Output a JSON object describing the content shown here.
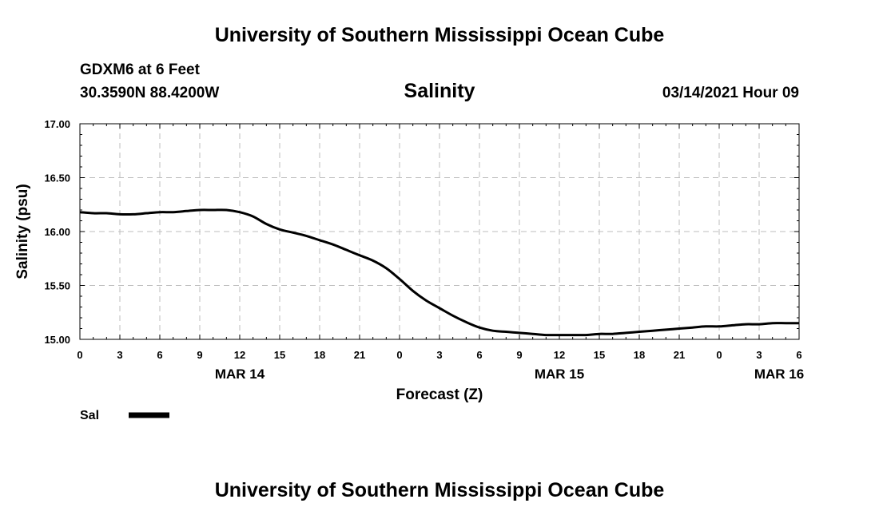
{
  "header": {
    "top_title": "University of Southern Mississippi Ocean Cube",
    "station": "GDXM6 at 6 Feet",
    "coords": "30.3590N 88.4200W",
    "chart_title": "Salinity",
    "datetime": "03/14/2021 Hour 09",
    "bottom_title": "University of Southern Mississippi Ocean Cube"
  },
  "chart_data": {
    "type": "line",
    "title": "Salinity",
    "xlabel": "Forecast (Z)",
    "ylabel": "Salinity (psu)",
    "ylim": [
      15.0,
      17.0
    ],
    "xlim_hours": [
      0,
      54
    ],
    "y_ticks": [
      "15.00",
      "15.50",
      "16.00",
      "16.50",
      "17.00"
    ],
    "x_ticks": [
      {
        "hour": 0,
        "label": "0"
      },
      {
        "hour": 3,
        "label": "3"
      },
      {
        "hour": 6,
        "label": "6"
      },
      {
        "hour": 9,
        "label": "9"
      },
      {
        "hour": 12,
        "label": "12"
      },
      {
        "hour": 15,
        "label": "15"
      },
      {
        "hour": 18,
        "label": "18"
      },
      {
        "hour": 21,
        "label": "21"
      },
      {
        "hour": 24,
        "label": "0"
      },
      {
        "hour": 27,
        "label": "3"
      },
      {
        "hour": 30,
        "label": "6"
      },
      {
        "hour": 33,
        "label": "9"
      },
      {
        "hour": 36,
        "label": "12"
      },
      {
        "hour": 39,
        "label": "15"
      },
      {
        "hour": 42,
        "label": "18"
      },
      {
        "hour": 45,
        "label": "21"
      },
      {
        "hour": 48,
        "label": "0"
      },
      {
        "hour": 51,
        "label": "3"
      },
      {
        "hour": 54,
        "label": "6"
      }
    ],
    "date_labels": [
      {
        "hour": 12,
        "label": "MAR 14"
      },
      {
        "hour": 36,
        "label": "MAR 15"
      },
      {
        "hour": 52.5,
        "label": "MAR 16"
      }
    ],
    "series": [
      {
        "name": "Sal",
        "color": "#000000",
        "x": [
          0,
          1,
          2,
          3,
          4,
          5,
          6,
          7,
          8,
          9,
          10,
          11,
          12,
          13,
          14,
          15,
          16,
          17,
          18,
          19,
          20,
          21,
          22,
          23,
          24,
          25,
          26,
          27,
          28,
          29,
          30,
          31,
          32,
          33,
          34,
          35,
          36,
          37,
          38,
          39,
          40,
          41,
          42,
          43,
          44,
          45,
          46,
          47,
          48,
          49,
          50,
          51,
          52,
          53,
          54
        ],
        "values": [
          16.18,
          16.17,
          16.17,
          16.16,
          16.16,
          16.17,
          16.18,
          16.18,
          16.19,
          16.2,
          16.2,
          16.2,
          16.18,
          16.14,
          16.07,
          16.02,
          15.99,
          15.96,
          15.92,
          15.88,
          15.83,
          15.78,
          15.73,
          15.66,
          15.56,
          15.45,
          15.36,
          15.29,
          15.22,
          15.16,
          15.11,
          15.08,
          15.07,
          15.06,
          15.05,
          15.04,
          15.04,
          15.04,
          15.04,
          15.05,
          15.05,
          15.06,
          15.07,
          15.08,
          15.09,
          15.1,
          15.11,
          15.12,
          15.12,
          15.13,
          15.14,
          15.14,
          15.15,
          15.15,
          15.15
        ]
      }
    ],
    "legend": [
      {
        "label": "Sal",
        "color": "#000000"
      }
    ]
  }
}
